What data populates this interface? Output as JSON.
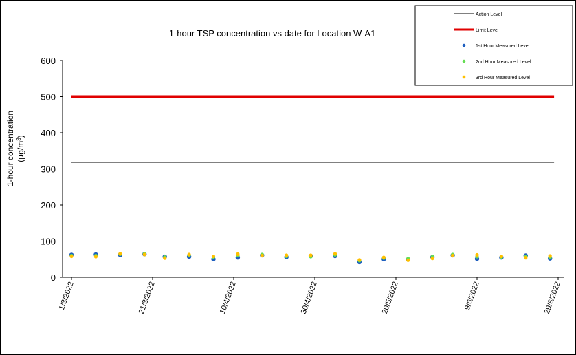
{
  "chart_data": {
    "type": "scatter",
    "title": "1-hour TSP concentration vs date for Location W-A1",
    "ylabel": "1-hour concentration",
    "ylabel_unit": "(µg/m",
    "ylabel_unit_sup": "3",
    "ylabel_unit_close": ")",
    "xlabel": "",
    "ylim": [
      0,
      600
    ],
    "yticks": [
      0,
      100,
      200,
      300,
      400,
      500,
      600
    ],
    "xlim": [
      "2022-03-01",
      "2022-06-29"
    ],
    "xticks": [
      {
        "date": "2022-03-01",
        "label": "1/3/2022"
      },
      {
        "date": "2022-03-21",
        "label": "21/3/2022"
      },
      {
        "date": "2022-04-10",
        "label": "10/4/2022"
      },
      {
        "date": "2022-04-30",
        "label": "30/4/2022"
      },
      {
        "date": "2022-05-20",
        "label": "20/5/2022"
      },
      {
        "date": "2022-06-09",
        "label": "9/6/2022"
      },
      {
        "date": "2022-06-29",
        "label": "29/6/2022"
      }
    ],
    "grid": false,
    "legend_position": "top-right",
    "lines": [
      {
        "name": "Action Level",
        "color": "#000000",
        "value": 318,
        "x": [
          "2022-03-01",
          "2022-06-28"
        ]
      },
      {
        "name": "Limit Level",
        "color": "#e00000",
        "value": 500,
        "x": [
          "2022-03-01",
          "2022-06-28"
        ]
      }
    ],
    "x": [
      "2022-03-01",
      "2022-03-07",
      "2022-03-13",
      "2022-03-19",
      "2022-03-24",
      "2022-03-30",
      "2022-04-05",
      "2022-04-11",
      "2022-04-17",
      "2022-04-23",
      "2022-04-29",
      "2022-05-05",
      "2022-05-11",
      "2022-05-17",
      "2022-05-23",
      "2022-05-29",
      "2022-06-03",
      "2022-06-09",
      "2022-06-15",
      "2022-06-21",
      "2022-06-27"
    ],
    "series": [
      {
        "name": "1st Hour Measured Level",
        "color": "#1f5fbf",
        "values": [
          62,
          63,
          62,
          64,
          57,
          57,
          50,
          55,
          61,
          56,
          59,
          59,
          42,
          50,
          49,
          56,
          61,
          51,
          55,
          60,
          52
        ]
      },
      {
        "name": "2nd Hour Measured Level",
        "color": "#66dd55",
        "values": [
          60,
          60,
          64,
          65,
          56,
          61,
          56,
          60,
          63,
          58,
          57,
          62,
          46,
          53,
          52,
          57,
          63,
          57,
          56,
          58,
          55
        ]
      },
      {
        "name": "3rd Hour Measured Level",
        "color": "#ffc000",
        "values": [
          58,
          57,
          65,
          63,
          53,
          63,
          58,
          64,
          60,
          61,
          61,
          65,
          48,
          55,
          47,
          52,
          60,
          62,
          58,
          54,
          59
        ]
      }
    ]
  }
}
